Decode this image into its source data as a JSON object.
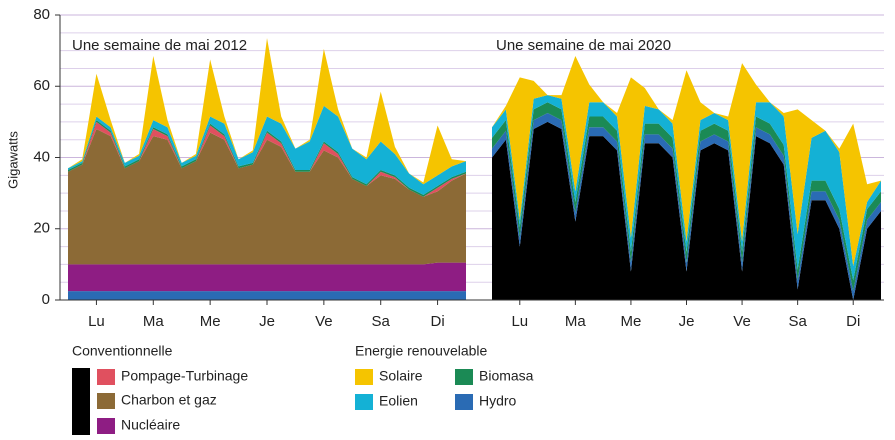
{
  "chart_data": [
    {
      "type": "stacked-area",
      "title": "Une semaine de mai 2012",
      "ylabel": "Gigawatts",
      "ylim": [
        0,
        80
      ],
      "yticks": [
        0,
        20,
        40,
        60,
        80
      ],
      "minor_yticks": [
        5,
        10,
        15,
        25,
        30,
        35,
        45,
        50,
        55,
        65,
        70,
        75
      ],
      "grid": true,
      "legend_groups": [
        "Conventionnelle",
        "Energie renouvelable"
      ],
      "xlim": [
        0,
        7
      ],
      "xticks": [
        {
          "value": 0.5,
          "label": "Lu"
        },
        {
          "value": 1.5,
          "label": "Ma"
        },
        {
          "value": 2.5,
          "label": "Me"
        },
        {
          "value": 3.5,
          "label": "Je"
        },
        {
          "value": 4.5,
          "label": "Ve"
        },
        {
          "value": 5.5,
          "label": "Sa"
        },
        {
          "value": 6.5,
          "label": "Di"
        }
      ],
      "x": [
        0,
        0.25,
        0.5,
        0.75,
        1,
        1.25,
        1.5,
        1.75,
        2,
        2.25,
        2.5,
        2.75,
        3,
        3.25,
        3.5,
        3.75,
        4,
        4.25,
        4.5,
        4.75,
        5,
        5.25,
        5.5,
        5.75,
        6,
        6.25,
        6.5,
        6.75,
        7
      ],
      "series": [
        {
          "name": "Hydro",
          "color": "#2a6bb4",
          "values": [
            2.5,
            2.5,
            2.5,
            2.5,
            2.5,
            2.5,
            2.5,
            2.5,
            2.5,
            2.5,
            2.5,
            2.5,
            2.5,
            2.5,
            2.5,
            2.5,
            2.5,
            2.5,
            2.5,
            2.5,
            2.5,
            2.5,
            2.5,
            2.5,
            2.5,
            2.5,
            2.5,
            2.5,
            2.5
          ]
        },
        {
          "name": "Nucléaire",
          "color": "#8e1d83",
          "values": [
            7.5,
            7.5,
            7.5,
            7.5,
            7.5,
            7.5,
            7.5,
            7.5,
            7.5,
            7.5,
            7.5,
            7.5,
            7.5,
            7.5,
            7.5,
            7.5,
            7.5,
            7.5,
            7.5,
            7.5,
            7.5,
            7.5,
            7.5,
            7.5,
            7.5,
            7.5,
            8,
            8,
            8
          ]
        },
        {
          "name": "Charbon et gaz",
          "color": "#8c6a36",
          "values": [
            26,
            28,
            38,
            36,
            27,
            29,
            36,
            35,
            27,
            29,
            37,
            35,
            27,
            28,
            35,
            33,
            26,
            26,
            32,
            30,
            24,
            22,
            25,
            24,
            21,
            19,
            20,
            23,
            25
          ]
        },
        {
          "name": "Pompage-Turbinage",
          "color": "#e0505f",
          "values": [
            0,
            0,
            2,
            1,
            0,
            0,
            2,
            1,
            0,
            0,
            2,
            1,
            0,
            0,
            2,
            1,
            0,
            0,
            2,
            1,
            0,
            0,
            1,
            0.5,
            0,
            0,
            1,
            0.5,
            0
          ]
        },
        {
          "name": "Biomasa",
          "color": "#1b8a55",
          "values": [
            0.5,
            0.5,
            0.5,
            0.5,
            0.5,
            0.5,
            0.5,
            0.5,
            0.5,
            0.5,
            0.5,
            0.5,
            0.5,
            0.5,
            0.5,
            0.5,
            0.5,
            0.5,
            0.5,
            0.5,
            0.5,
            0.5,
            0.5,
            0.5,
            0.5,
            0.5,
            0.5,
            0.5,
            0.5
          ]
        },
        {
          "name": "Eolien",
          "color": "#14b1d5",
          "values": [
            0.5,
            0.5,
            1,
            1,
            1,
            1,
            2,
            2,
            1,
            1,
            2,
            3,
            2,
            3,
            4,
            5,
            6,
            8,
            10,
            10,
            8,
            7,
            8,
            6,
            4,
            3,
            3,
            3,
            3
          ]
        },
        {
          "name": "Solaire",
          "color": "#f5c400",
          "values": [
            0,
            0.5,
            12,
            2,
            0,
            0.5,
            18,
            2,
            0,
            0.5,
            16,
            2,
            0,
            0.5,
            22,
            2,
            0,
            0.5,
            16,
            2,
            0,
            0.5,
            14,
            2,
            0,
            0.5,
            14,
            2,
            0
          ]
        }
      ]
    },
    {
      "type": "stacked-area",
      "title": "Une semaine de mai 2020",
      "xlim": [
        0,
        7
      ],
      "xticks": [
        {
          "value": 0.5,
          "label": "Lu"
        },
        {
          "value": 1.5,
          "label": "Ma"
        },
        {
          "value": 2.5,
          "label": "Me"
        },
        {
          "value": 3.5,
          "label": "Je"
        },
        {
          "value": 4.5,
          "label": "Ve"
        },
        {
          "value": 5.5,
          "label": "Sa"
        },
        {
          "value": 6.5,
          "label": "Di"
        }
      ],
      "x": [
        0,
        0.25,
        0.5,
        0.75,
        1,
        1.25,
        1.5,
        1.75,
        2,
        2.25,
        2.5,
        2.75,
        3,
        3.25,
        3.5,
        3.75,
        4,
        4.25,
        4.5,
        4.75,
        5,
        5.25,
        5.5,
        5.75,
        6,
        6.25,
        6.5,
        6.75,
        7
      ],
      "series": [
        {
          "color": "#000000",
          "values": [
            40,
            45,
            15,
            48,
            50,
            48,
            22,
            46,
            46,
            42,
            8,
            44,
            44,
            40,
            8,
            42,
            44,
            42,
            8,
            46,
            44,
            38,
            3,
            28,
            28,
            20,
            0,
            20,
            25
          ]
        },
        {
          "name": "Hydro",
          "color": "#2a6bb4",
          "values": [
            2.5,
            2.5,
            2.5,
            2.5,
            2.5,
            2.5,
            2.5,
            2.5,
            2.5,
            2.5,
            2.5,
            2.5,
            2.5,
            2.5,
            2.5,
            2.5,
            2.5,
            2.5,
            2.5,
            2.5,
            2.5,
            2.5,
            2.5,
            2.5,
            2.5,
            2.5,
            2.5,
            2.5,
            2.5
          ]
        },
        {
          "name": "Biomasa",
          "color": "#1b8a55",
          "values": [
            3,
            3,
            3,
            3,
            3,
            3,
            3,
            3,
            3,
            3,
            3,
            3,
            3,
            3,
            3,
            3,
            3,
            3,
            3,
            3,
            3,
            3,
            3,
            3,
            3,
            3,
            3,
            3,
            3
          ]
        },
        {
          "name": "Eolien",
          "color": "#14b1d5",
          "values": [
            3,
            3,
            2,
            3,
            2,
            3,
            3,
            4,
            4,
            4,
            4,
            5,
            4,
            4,
            3,
            3,
            3,
            3,
            3,
            4,
            6,
            8,
            10,
            12,
            14,
            16,
            4,
            2,
            3
          ]
        },
        {
          "name": "Solaire",
          "color": "#f5c400",
          "values": [
            0,
            1,
            40,
            5,
            0,
            1,
            38,
            5,
            0,
            1,
            45,
            5,
            0,
            1,
            48,
            5,
            0,
            1,
            50,
            5,
            0,
            1,
            35,
            5,
            0,
            1,
            40,
            5,
            0
          ]
        }
      ]
    }
  ]
}
